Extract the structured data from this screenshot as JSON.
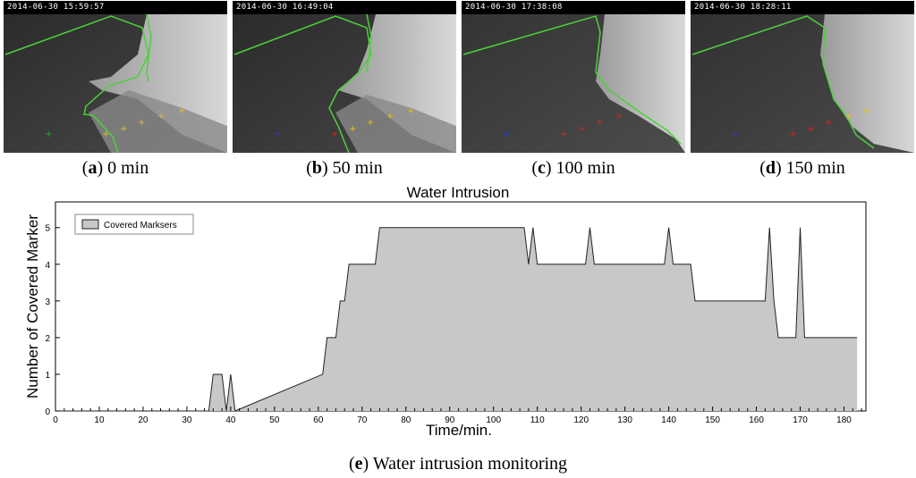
{
  "frames": [
    {
      "timestamp": "2014-06-30 15:59:57",
      "caption_letter": "a",
      "caption_text": "0 min"
    },
    {
      "timestamp": "2014-06-30 16:49:04",
      "caption_letter": "b",
      "caption_text": "50 min"
    },
    {
      "timestamp": "2014-06-30 17:38:08",
      "caption_letter": "c",
      "caption_text": "100 min"
    },
    {
      "timestamp": "2014-06-30 18:28:11",
      "caption_letter": "d",
      "caption_text": "150 min"
    }
  ],
  "colors": {
    "boundary": "#4cd13a",
    "marker_yellow": "#e8c21a",
    "marker_red": "#e02020",
    "marker_blue": "#2a3bd8",
    "marker_green": "#1fae2a",
    "area_fill": "#c8c8c8"
  },
  "chart_data": {
    "type": "area",
    "title": "Water Intrusion",
    "xlabel": "Time/min.",
    "ylabel": "Number of Covered Marker",
    "xlim": [
      0,
      185
    ],
    "ylim": [
      0,
      5.7
    ],
    "x_ticks": [
      0,
      10,
      20,
      30,
      40,
      50,
      60,
      70,
      80,
      90,
      100,
      110,
      120,
      130,
      140,
      150,
      160,
      170,
      180
    ],
    "y_ticks": [
      0,
      1,
      2,
      3,
      4,
      5
    ],
    "legend": {
      "position": "top-left",
      "entries": [
        "Covered Marksers"
      ]
    },
    "grid": false,
    "series": [
      {
        "name": "Covered Marksers",
        "x": [
          0,
          35,
          36,
          38,
          39,
          40,
          41,
          61,
          62,
          64,
          65,
          66,
          67,
          73,
          74,
          107,
          108,
          109,
          110,
          121,
          122,
          123,
          139,
          140,
          141,
          145,
          146,
          162,
          163,
          164,
          165,
          169,
          170,
          171,
          183
        ],
        "y": [
          0,
          0,
          1,
          1,
          0,
          1,
          0,
          1,
          2,
          2,
          3,
          3,
          4,
          4,
          5,
          5,
          4,
          5,
          4,
          4,
          5,
          4,
          4,
          5,
          4,
          4,
          3,
          3,
          5,
          3,
          2,
          2,
          5,
          2,
          2
        ]
      }
    ]
  },
  "figure_caption": {
    "letter": "e",
    "text": "Water intrusion monitoring"
  }
}
